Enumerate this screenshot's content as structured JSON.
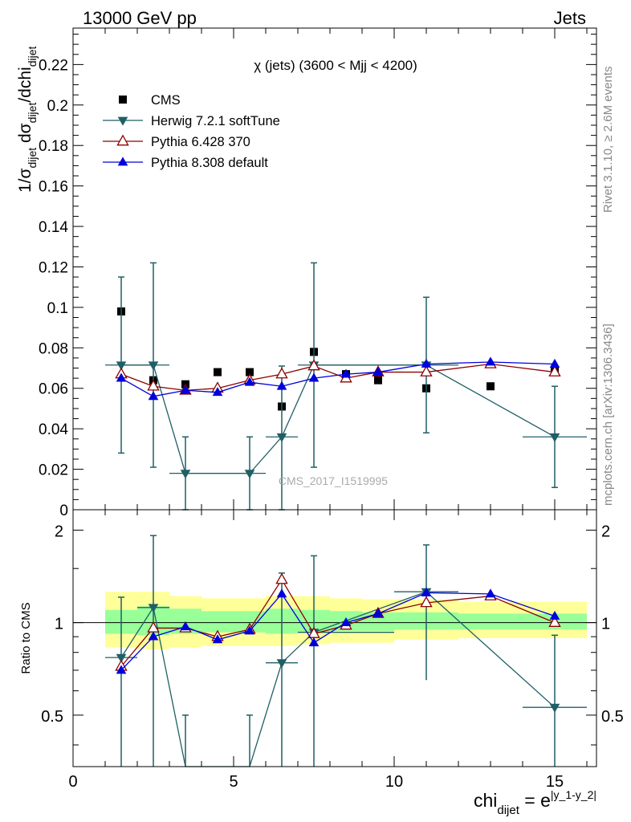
{
  "header": {
    "left": "13000 GeV pp",
    "right": "Jets"
  },
  "side_labels": {
    "rivet": "Rivet 3.1.10, ≥ 2.6M events",
    "mcplots": "mcplots.cern.ch [arXiv:1306.3436]"
  },
  "chart_data": [
    {
      "type": "scatter",
      "title": "χ (jets) (3600 < Mjj < 4200)",
      "watermark": "CMS_2017_I1519995",
      "ylabel_parts": {
        "a": "1/σ",
        "a_sub": "dijet",
        "b": " dσ",
        "b_sub": "dijet",
        "c": "/dchi",
        "c_sub": "dijet"
      },
      "xlim": [
        0,
        16.3
      ],
      "ylim": [
        0,
        0.238
      ],
      "yticks": [
        0,
        0.02,
        0.04,
        0.06,
        0.08,
        0.1,
        0.12,
        0.14,
        0.16,
        0.18,
        0.2,
        0.22
      ],
      "ytick_labels": [
        "0",
        "0.02",
        "0.04",
        "0.06",
        "0.08",
        "0.1",
        "0.12",
        "0.14",
        "0.16",
        "0.18",
        "0.2",
        "0.22"
      ],
      "legend": [
        {
          "label": "CMS",
          "color": "#000000",
          "marker": "square"
        },
        {
          "label": "Herwig 7.2.1 softTune",
          "color": "#1f5f66",
          "marker": "triangle-down"
        },
        {
          "label": "Pythia 6.428 370",
          "color": "#8b0000",
          "marker": "triangle-open"
        },
        {
          "label": "Pythia 8.308 default",
          "color": "#0000dd",
          "marker": "triangle-up"
        }
      ],
      "series": [
        {
          "name": "CMS",
          "x": [
            1.5,
            2.5,
            3.5,
            4.5,
            5.5,
            6.5,
            7.5,
            8.5,
            9.5,
            11.0,
            13.0,
            15.0
          ],
          "y": [
            0.098,
            0.064,
            0.062,
            0.068,
            0.068,
            0.051,
            0.078,
            0.067,
            0.064,
            0.06,
            0.061,
            0.069
          ]
        },
        {
          "name": "Herwig 7.2.1 softTune",
          "x": [
            1.5,
            2.5,
            3.5,
            5.5,
            6.5,
            7.5,
            11.0,
            15.0
          ],
          "y": [
            0.0715,
            0.0715,
            0.018,
            0.018,
            0.036,
            0.0715,
            0.0715,
            0.036
          ],
          "bin_edges": [
            [
              1,
              2
            ],
            [
              2,
              3
            ],
            [
              3,
              5
            ],
            [
              5,
              6
            ],
            [
              6,
              7
            ],
            [
              7,
              10
            ],
            [
              10,
              12
            ],
            [
              14,
              16
            ]
          ],
          "err_low": [
            0.028,
            0.021,
            0.0,
            0.0,
            0.0,
            0.021,
            0.038,
            0.011
          ],
          "err_high": [
            0.115,
            0.122,
            0.036,
            0.036,
            0.071,
            0.122,
            0.105,
            0.061
          ]
        },
        {
          "name": "Pythia 6.428 370",
          "x": [
            1.5,
            2.5,
            3.5,
            4.5,
            5.5,
            6.5,
            7.5,
            8.5,
            9.5,
            11.0,
            13.0,
            15.0
          ],
          "y": [
            0.067,
            0.061,
            0.059,
            0.06,
            0.064,
            0.067,
            0.071,
            0.065,
            0.068,
            0.068,
            0.072,
            0.068
          ]
        },
        {
          "name": "Pythia 8.308 default",
          "x": [
            1.5,
            2.5,
            3.5,
            4.5,
            5.5,
            6.5,
            7.5,
            8.5,
            9.5,
            11.0,
            13.0,
            15.0
          ],
          "y": [
            0.065,
            0.056,
            0.059,
            0.058,
            0.063,
            0.061,
            0.065,
            0.067,
            0.068,
            0.072,
            0.073,
            0.072
          ]
        }
      ]
    },
    {
      "type": "scatter",
      "ylabel": "Ratio to CMS",
      "xlabel_parts": {
        "main": "chi",
        "sub": "dijet",
        "eq": " = e",
        "sup": "|y_1-y_2|"
      },
      "xlim": [
        0,
        16.3
      ],
      "ylim": [
        0.34,
        2.33
      ],
      "log_y": true,
      "reference_line": 1,
      "yticks": [
        0.5,
        1,
        2
      ],
      "ytick_labels": [
        "0.5",
        "1",
        "2"
      ],
      "xticks": [
        0,
        5,
        10,
        15
      ],
      "xtick_labels": [
        "0",
        "5",
        "10",
        "15"
      ],
      "bands": [
        {
          "color": "#ffff99",
          "bins": [
            [
              1,
              2,
              0.83,
              1.26
            ],
            [
              2,
              3,
              0.82,
              1.26
            ],
            [
              3,
              4,
              0.83,
              1.22
            ],
            [
              4,
              5,
              0.84,
              1.2
            ],
            [
              5,
              6,
              0.84,
              1.2
            ],
            [
              6,
              7,
              0.84,
              1.22
            ],
            [
              7,
              8,
              0.85,
              1.22
            ],
            [
              8,
              9,
              0.86,
              1.2
            ],
            [
              9,
              10,
              0.86,
              1.19
            ],
            [
              10,
              12,
              0.88,
              1.19
            ],
            [
              12,
              14,
              0.89,
              1.17
            ],
            [
              14,
              16,
              0.89,
              1.17
            ]
          ]
        },
        {
          "color": "#99ff99",
          "bins": [
            [
              1,
              2,
              0.92,
              1.1
            ],
            [
              2,
              3,
              0.91,
              1.13
            ],
            [
              3,
              4,
              0.92,
              1.11
            ],
            [
              4,
              5,
              0.93,
              1.09
            ],
            [
              5,
              6,
              0.93,
              1.09
            ],
            [
              6,
              7,
              0.92,
              1.11
            ],
            [
              7,
              8,
              0.93,
              1.1
            ],
            [
              8,
              9,
              0.94,
              1.09
            ],
            [
              9,
              10,
              0.94,
              1.08
            ],
            [
              10,
              12,
              0.95,
              1.08
            ],
            [
              12,
              14,
              0.95,
              1.07
            ],
            [
              14,
              16,
              0.95,
              1.07
            ]
          ]
        }
      ],
      "series": [
        {
          "name": "Herwig 7.2.1 softTune",
          "x": [
            1.5,
            2.5,
            3.5,
            5.5,
            6.5,
            7.5,
            11.0,
            15.0
          ],
          "y": [
            0.77,
            1.12,
            0.29,
            0.26,
            0.74,
            0.93,
            1.26,
            0.53
          ],
          "bin_edges": [
            [
              1,
              2
            ],
            [
              2,
              3
            ],
            [
              3,
              5
            ],
            [
              5,
              6
            ],
            [
              6,
              7
            ],
            [
              7,
              10
            ],
            [
              10,
              12
            ],
            [
              14,
              16
            ]
          ],
          "err_low": [
            0.3,
            0.3,
            0.2,
            0.2,
            0.2,
            0.3,
            0.65,
            0.15
          ],
          "err_high": [
            1.21,
            1.92,
            0.5,
            0.5,
            1.45,
            1.65,
            1.79,
            0.91
          ]
        },
        {
          "name": "Pythia 6.428 370",
          "x": [
            1.5,
            2.5,
            3.5,
            4.5,
            5.5,
            6.5,
            7.5,
            8.5,
            9.5,
            11.0,
            13.0,
            15.0
          ],
          "y": [
            0.72,
            0.96,
            0.96,
            0.9,
            0.95,
            1.38,
            0.92,
            0.98,
            1.07,
            1.16,
            1.22,
            1.0
          ]
        },
        {
          "name": "Pythia 8.308 default",
          "x": [
            1.5,
            2.5,
            3.5,
            4.5,
            5.5,
            6.5,
            7.5,
            8.5,
            9.5,
            11.0,
            13.0,
            15.0
          ],
          "y": [
            0.7,
            0.9,
            0.97,
            0.88,
            0.94,
            1.24,
            0.86,
            1.0,
            1.07,
            1.25,
            1.24,
            1.05
          ]
        }
      ]
    }
  ]
}
